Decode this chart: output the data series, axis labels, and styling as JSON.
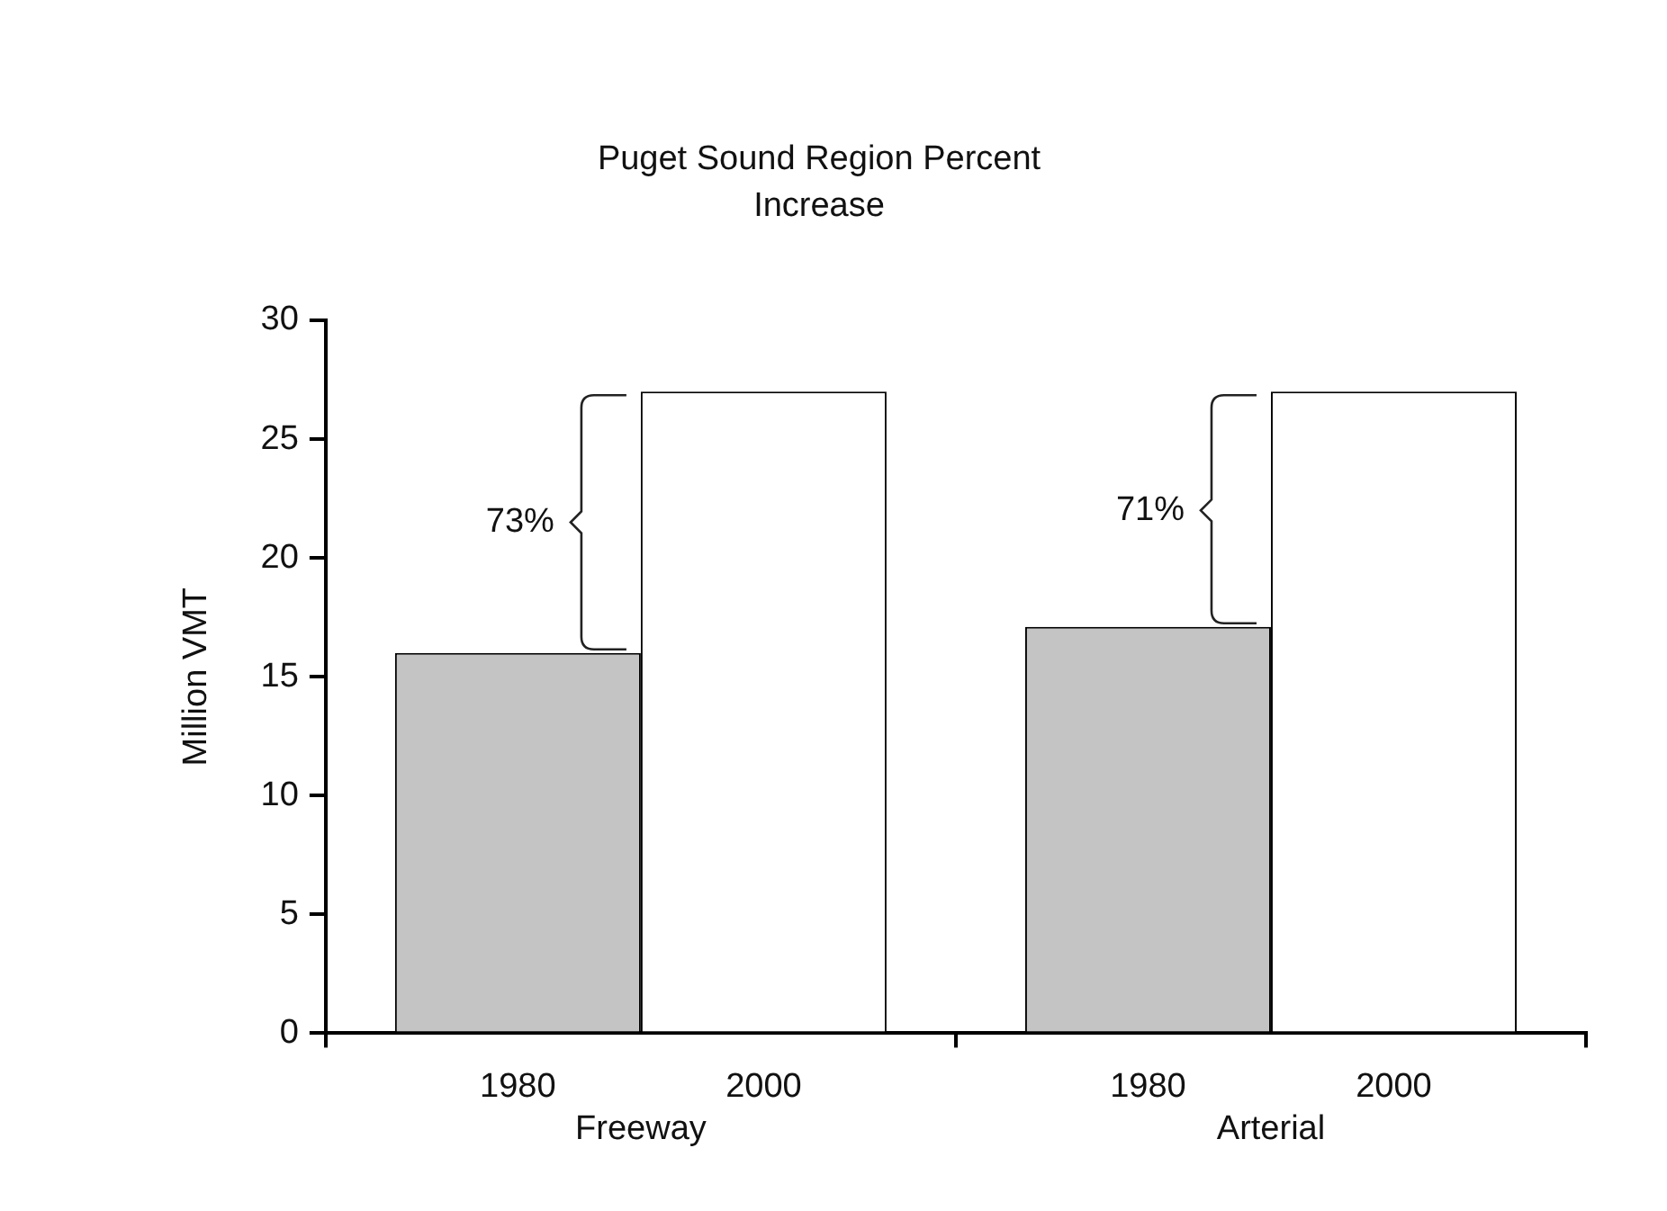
{
  "chart_data": {
    "type": "bar",
    "title": "Puget Sound Region Percent Increase",
    "ylabel": "Million VMT",
    "categories": [
      "Freeway",
      "Arterial"
    ],
    "series": [
      {
        "name": "1980",
        "color": "#c4c4c4",
        "values": [
          16,
          17.1
        ]
      },
      {
        "name": "2000",
        "color": "#ffffff",
        "values": [
          27,
          27
        ]
      }
    ],
    "ylim": [
      0,
      30
    ],
    "yticks": [
      0,
      5,
      10,
      15,
      20,
      25,
      30
    ],
    "grid": false,
    "legend": false,
    "annotations": [
      {
        "text": "73%",
        "x": "Freeway",
        "y": 21.5
      },
      {
        "text": "71%",
        "x": "Arterial",
        "y": 22
      }
    ]
  }
}
